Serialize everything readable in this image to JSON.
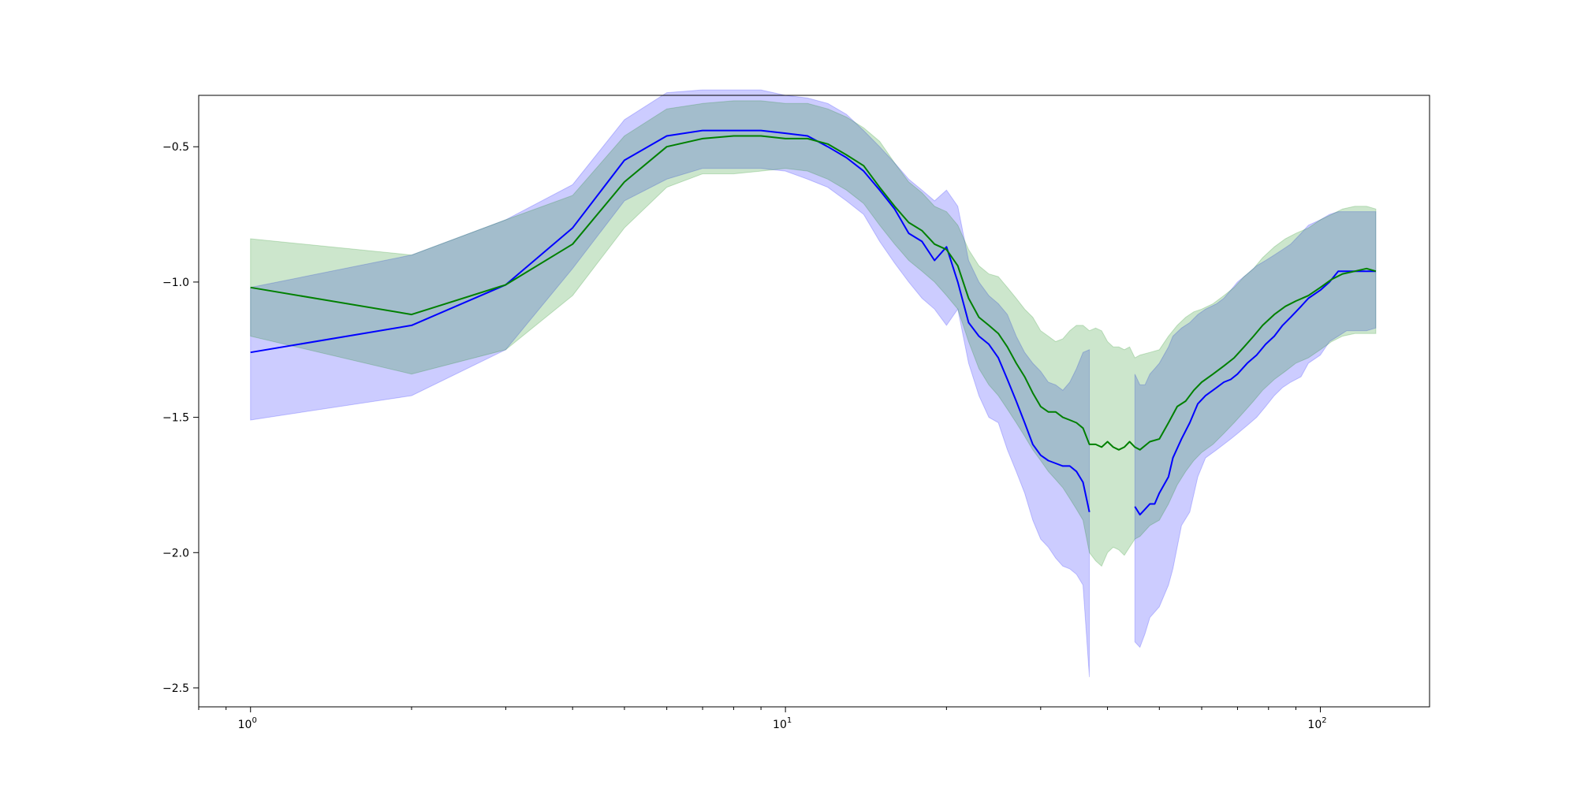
{
  "chart_data": {
    "type": "line",
    "title": "",
    "xlabel": "",
    "ylabel": "",
    "x_scale": "log",
    "xlim": [
      0.8,
      160
    ],
    "ylim": [
      -2.57,
      -0.31
    ],
    "grid": false,
    "x_ticks": [
      {
        "value": 1,
        "base": "10",
        "exp": "0"
      },
      {
        "value": 10,
        "base": "10",
        "exp": "1"
      },
      {
        "value": 100,
        "base": "10",
        "exp": "2"
      }
    ],
    "y_ticks": [
      {
        "value": -0.5,
        "label": "−0.5"
      },
      {
        "value": -1.0,
        "label": "−1.0"
      },
      {
        "value": -1.5,
        "label": "−1.5"
      },
      {
        "value": -2.0,
        "label": "−2.0"
      },
      {
        "value": -2.5,
        "label": "−2.5"
      }
    ],
    "series": [
      {
        "color": "#0000ff",
        "fill_color": "#0000ff",
        "fill_opacity": 0.2,
        "points": [
          [
            1,
            -1.26,
            -1.51,
            -1.02
          ],
          [
            2,
            -1.16,
            -1.42,
            -0.9
          ],
          [
            3,
            -1.01,
            -1.25,
            -0.77
          ],
          [
            4,
            -0.8,
            -0.95,
            -0.64
          ],
          [
            5,
            -0.55,
            -0.7,
            -0.4
          ],
          [
            6,
            -0.46,
            -0.62,
            -0.3
          ],
          [
            7,
            -0.44,
            -0.58,
            -0.29
          ],
          [
            8,
            -0.44,
            -0.58,
            -0.29
          ],
          [
            9,
            -0.44,
            -0.58,
            -0.29
          ],
          [
            10,
            -0.45,
            -0.59,
            -0.31
          ],
          [
            11,
            -0.46,
            -0.62,
            -0.32
          ],
          [
            12,
            -0.5,
            -0.65,
            -0.34
          ],
          [
            13,
            -0.54,
            -0.7,
            -0.38
          ],
          [
            14,
            -0.59,
            -0.75,
            -0.44
          ],
          [
            15,
            -0.66,
            -0.85,
            -0.5
          ],
          [
            16,
            -0.73,
            -0.93,
            -0.56
          ],
          [
            17,
            -0.82,
            -1.0,
            -0.62
          ],
          [
            18,
            -0.85,
            -1.06,
            -0.66
          ],
          [
            19,
            -0.92,
            -1.1,
            -0.7
          ],
          [
            20,
            -0.87,
            -1.16,
            -0.66
          ],
          [
            21,
            -1.0,
            -1.1,
            -0.72
          ],
          [
            22,
            -1.15,
            -1.3,
            -0.92
          ],
          [
            23,
            -1.2,
            -1.42,
            -1.0
          ],
          [
            24,
            -1.23,
            -1.5,
            -1.05
          ],
          [
            25,
            -1.28,
            -1.52,
            -1.08
          ],
          [
            26,
            -1.36,
            -1.62,
            -1.12
          ],
          [
            27,
            -1.44,
            -1.7,
            -1.2
          ],
          [
            28,
            -1.52,
            -1.78,
            -1.26
          ],
          [
            29,
            -1.6,
            -1.88,
            -1.3
          ],
          [
            30,
            -1.64,
            -1.95,
            -1.33
          ],
          [
            31,
            -1.66,
            -1.98,
            -1.37
          ],
          [
            32,
            -1.67,
            -2.02,
            -1.38
          ],
          [
            33,
            -1.68,
            -2.05,
            -1.4
          ],
          [
            34,
            -1.68,
            -2.06,
            -1.37
          ],
          [
            35,
            -1.7,
            -2.08,
            -1.32
          ],
          [
            36,
            -1.74,
            -2.12,
            -1.26
          ],
          [
            37,
            -1.85,
            -2.46,
            -1.25
          ],
          [
            null,
            null,
            null,
            null
          ],
          [
            45,
            -1.83,
            -2.33,
            -1.34
          ],
          [
            46,
            -1.86,
            -2.35,
            -1.38
          ],
          [
            47,
            -1.84,
            -2.3,
            -1.38
          ],
          [
            48,
            -1.82,
            -2.24,
            -1.34
          ],
          [
            49,
            -1.82,
            -2.22,
            -1.32
          ],
          [
            50,
            -1.78,
            -2.2,
            -1.3
          ],
          [
            52,
            -1.72,
            -2.12,
            -1.24
          ],
          [
            53,
            -1.65,
            -2.06,
            -1.2
          ],
          [
            55,
            -1.58,
            -1.9,
            -1.17
          ],
          [
            57,
            -1.52,
            -1.85,
            -1.15
          ],
          [
            59,
            -1.45,
            -1.72,
            -1.12
          ],
          [
            61,
            -1.42,
            -1.65,
            -1.1
          ],
          [
            64,
            -1.39,
            -1.62,
            -1.08
          ],
          [
            66,
            -1.37,
            -1.6,
            -1.06
          ],
          [
            68,
            -1.36,
            -1.58,
            -1.03
          ],
          [
            70,
            -1.34,
            -1.56,
            -1.0
          ],
          [
            73,
            -1.3,
            -1.53,
            -0.97
          ],
          [
            76,
            -1.27,
            -1.5,
            -0.94
          ],
          [
            79,
            -1.23,
            -1.46,
            -0.92
          ],
          [
            82,
            -1.2,
            -1.42,
            -0.9
          ],
          [
            85,
            -1.16,
            -1.39,
            -0.88
          ],
          [
            88,
            -1.13,
            -1.37,
            -0.86
          ],
          [
            92,
            -1.09,
            -1.35,
            -0.82
          ],
          [
            95,
            -1.06,
            -1.3,
            -0.79
          ],
          [
            100,
            -1.03,
            -1.27,
            -0.77
          ],
          [
            104,
            -1.0,
            -1.22,
            -0.75
          ],
          [
            108,
            -0.96,
            -1.2,
            -0.74
          ],
          [
            112,
            -0.96,
            -1.18,
            -0.74
          ],
          [
            116,
            -0.96,
            -1.18,
            -0.74
          ],
          [
            122,
            -0.96,
            -1.18,
            -0.74
          ],
          [
            127,
            -0.96,
            -1.17,
            -0.74
          ]
        ]
      },
      {
        "color": "#008000",
        "fill_color": "#008000",
        "fill_opacity": 0.2,
        "points": [
          [
            1,
            -1.02,
            -1.2,
            -0.84
          ],
          [
            2,
            -1.12,
            -1.34,
            -0.9
          ],
          [
            3,
            -1.01,
            -1.25,
            -0.77
          ],
          [
            4,
            -0.86,
            -1.05,
            -0.68
          ],
          [
            5,
            -0.63,
            -0.8,
            -0.46
          ],
          [
            6,
            -0.5,
            -0.65,
            -0.36
          ],
          [
            7,
            -0.47,
            -0.6,
            -0.34
          ],
          [
            8,
            -0.46,
            -0.6,
            -0.33
          ],
          [
            9,
            -0.46,
            -0.59,
            -0.33
          ],
          [
            10,
            -0.47,
            -0.58,
            -0.34
          ],
          [
            11,
            -0.47,
            -0.59,
            -0.34
          ],
          [
            12,
            -0.49,
            -0.62,
            -0.36
          ],
          [
            13,
            -0.53,
            -0.66,
            -0.39
          ],
          [
            14,
            -0.57,
            -0.71,
            -0.43
          ],
          [
            15,
            -0.65,
            -0.79,
            -0.48
          ],
          [
            16,
            -0.72,
            -0.86,
            -0.56
          ],
          [
            17,
            -0.78,
            -0.92,
            -0.63
          ],
          [
            18,
            -0.81,
            -0.96,
            -0.67
          ],
          [
            19,
            -0.86,
            -1.0,
            -0.72
          ],
          [
            20,
            -0.88,
            -1.05,
            -0.74
          ],
          [
            21,
            -0.94,
            -1.1,
            -0.79
          ],
          [
            22,
            -1.06,
            -1.22,
            -0.88
          ],
          [
            23,
            -1.13,
            -1.32,
            -0.94
          ],
          [
            24,
            -1.16,
            -1.38,
            -0.97
          ],
          [
            25,
            -1.19,
            -1.42,
            -0.98
          ],
          [
            26,
            -1.24,
            -1.47,
            -1.02
          ],
          [
            27,
            -1.3,
            -1.52,
            -1.06
          ],
          [
            28,
            -1.35,
            -1.57,
            -1.1
          ],
          [
            29,
            -1.41,
            -1.62,
            -1.13
          ],
          [
            30,
            -1.46,
            -1.66,
            -1.18
          ],
          [
            31,
            -1.48,
            -1.7,
            -1.2
          ],
          [
            32,
            -1.48,
            -1.73,
            -1.22
          ],
          [
            33,
            -1.5,
            -1.76,
            -1.21
          ],
          [
            34,
            -1.51,
            -1.8,
            -1.18
          ],
          [
            35,
            -1.52,
            -1.84,
            -1.16
          ],
          [
            36,
            -1.54,
            -1.88,
            -1.16
          ],
          [
            37,
            -1.6,
            -2.0,
            -1.18
          ],
          [
            38,
            -1.6,
            -2.03,
            -1.17
          ],
          [
            39,
            -1.61,
            -2.05,
            -1.18
          ],
          [
            40,
            -1.59,
            -2.0,
            -1.22
          ],
          [
            41,
            -1.61,
            -1.98,
            -1.24
          ],
          [
            42,
            -1.62,
            -1.99,
            -1.24
          ],
          [
            43,
            -1.61,
            -2.01,
            -1.25
          ],
          [
            44,
            -1.59,
            -1.98,
            -1.24
          ],
          [
            45,
            -1.61,
            -1.95,
            -1.28
          ],
          [
            46,
            -1.62,
            -1.94,
            -1.27
          ],
          [
            48,
            -1.59,
            -1.9,
            -1.26
          ],
          [
            50,
            -1.58,
            -1.88,
            -1.25
          ],
          [
            52,
            -1.52,
            -1.82,
            -1.2
          ],
          [
            54,
            -1.46,
            -1.75,
            -1.16
          ],
          [
            56,
            -1.44,
            -1.7,
            -1.13
          ],
          [
            58,
            -1.4,
            -1.66,
            -1.11
          ],
          [
            60,
            -1.37,
            -1.63,
            -1.1
          ],
          [
            63,
            -1.34,
            -1.6,
            -1.08
          ],
          [
            66,
            -1.31,
            -1.56,
            -1.05
          ],
          [
            69,
            -1.28,
            -1.52,
            -1.02
          ],
          [
            72,
            -1.24,
            -1.48,
            -0.98
          ],
          [
            75,
            -1.2,
            -1.44,
            -0.95
          ],
          [
            78,
            -1.16,
            -1.4,
            -0.91
          ],
          [
            82,
            -1.12,
            -1.36,
            -0.87
          ],
          [
            86,
            -1.09,
            -1.33,
            -0.84
          ],
          [
            90,
            -1.07,
            -1.3,
            -0.82
          ],
          [
            95,
            -1.05,
            -1.28,
            -0.8
          ],
          [
            100,
            -1.02,
            -1.25,
            -0.77
          ],
          [
            105,
            -0.99,
            -1.22,
            -0.75
          ],
          [
            110,
            -0.97,
            -1.2,
            -0.73
          ],
          [
            116,
            -0.96,
            -1.19,
            -0.72
          ],
          [
            122,
            -0.95,
            -1.19,
            -0.72
          ],
          [
            127,
            -0.96,
            -1.19,
            -0.73
          ]
        ]
      }
    ]
  }
}
